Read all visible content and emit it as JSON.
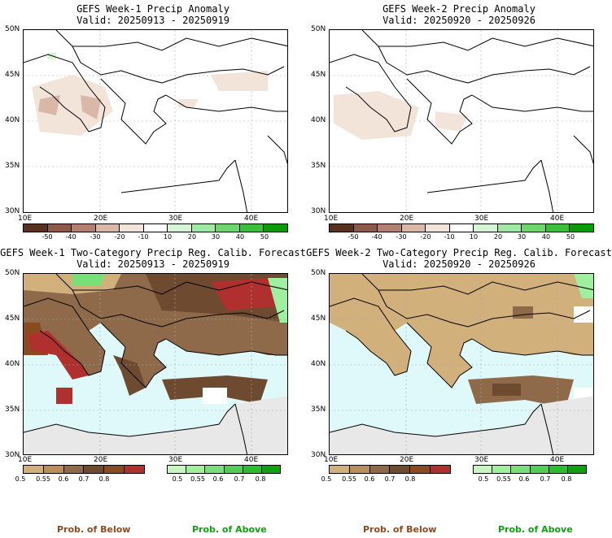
{
  "panels": [
    {
      "title": "GEFS Week-1 Precip Anomaly",
      "valid": "Valid: 20250913 - 20250919"
    },
    {
      "title": "GEFS Week-2 Precip Anomaly",
      "valid": "Valid: 20250920 - 20250926"
    },
    {
      "title": "GEFS Week-1 Two-Category Precip Reg. Calib. Forecast",
      "valid": "Valid: 20250913 - 20250919"
    },
    {
      "title": "GEFS Week-2 Two-Category Precip Reg. Calib. Forecast",
      "valid": "Valid: 20250920 - 20250926"
    }
  ],
  "axes": {
    "lat_labels": [
      "50N",
      "45N",
      "40N",
      "35N",
      "30N"
    ],
    "lon_labels": [
      "10E",
      "20E",
      "30E",
      "40E"
    ]
  },
  "anomaly_colorbar": {
    "labels": [
      "-50",
      "-40",
      "-30",
      "-20",
      "-10",
      "10",
      "20",
      "30",
      "40",
      "50"
    ],
    "colors": [
      "#5a3020",
      "#8b5a48",
      "#b08070",
      "#d9b8a8",
      "#f3e4da",
      "#ffffff",
      "#d6f5d6",
      "#a5e8a5",
      "#6fd66f",
      "#3cc03c",
      "#0a9a0a"
    ]
  },
  "prob_colorbar_below": {
    "labels": [
      "0.5",
      "0.55",
      "0.6",
      "0.7",
      "0.8"
    ],
    "colors": [
      "#d2b07c",
      "#b8905e",
      "#8e6a4a",
      "#6e4a30",
      "#8b4a20",
      "#b03030"
    ]
  },
  "prob_colorbar_above": {
    "labels": [
      "0.5",
      "0.55",
      "0.6",
      "0.7",
      "0.8"
    ],
    "colors": [
      "#c8f5c0",
      "#a0eea0",
      "#78e078",
      "#50d050",
      "#28c028",
      "#10a010"
    ]
  },
  "legend": {
    "below": "Prob. of Below",
    "above": "Prob. of Above"
  },
  "colors": {
    "sea": "#dff8fa",
    "land_grey": "#e8e8e8"
  }
}
